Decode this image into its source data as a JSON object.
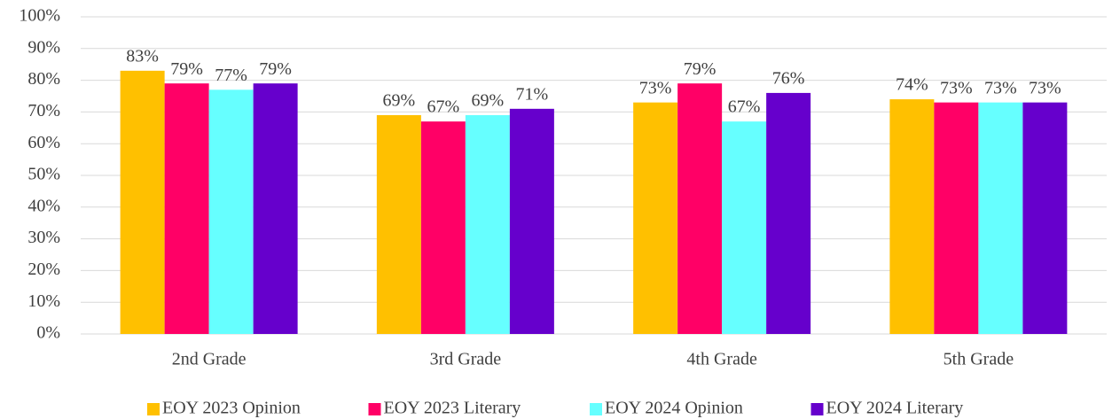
{
  "chart_data": {
    "type": "bar",
    "categories": [
      "2nd Grade",
      "3rd Grade",
      "4th Grade",
      "5th Grade"
    ],
    "series": [
      {
        "name": "EOY 2023 Opinion",
        "color": "#ffc000",
        "values": [
          83,
          69,
          73,
          74
        ],
        "value_labels": [
          "83%",
          "69%",
          "73%",
          "74%"
        ]
      },
      {
        "name": "EOY 2023 Literary",
        "color": "#ff0066",
        "values": [
          79,
          67,
          79,
          73
        ],
        "value_labels": [
          "79%",
          "67%",
          "79%",
          "73%"
        ]
      },
      {
        "name": "EOY 2024 Opinion",
        "color": "#66ffff",
        "values": [
          77,
          69,
          67,
          73
        ],
        "value_labels": [
          "77%",
          "69%",
          "67%",
          "73%"
        ]
      },
      {
        "name": "EOY 2024 Literary",
        "color": "#6600cc",
        "values": [
          79,
          71,
          76,
          73
        ],
        "value_labels": [
          "79%",
          "71%",
          "76%",
          "73%"
        ]
      }
    ],
    "ylim": [
      0,
      100
    ],
    "yticks": [
      {
        "value": 0,
        "label": "0%"
      },
      {
        "value": 10,
        "label": "10%"
      },
      {
        "value": 20,
        "label": "20%"
      },
      {
        "value": 30,
        "label": "30%"
      },
      {
        "value": 40,
        "label": "40%"
      },
      {
        "value": 50,
        "label": "50%"
      },
      {
        "value": 60,
        "label": "60%"
      },
      {
        "value": 70,
        "label": "70%"
      },
      {
        "value": 80,
        "label": "80%"
      },
      {
        "value": 90,
        "label": "90%"
      },
      {
        "value": 100,
        "label": "100%"
      }
    ],
    "grid": true,
    "legend": "bottom"
  }
}
